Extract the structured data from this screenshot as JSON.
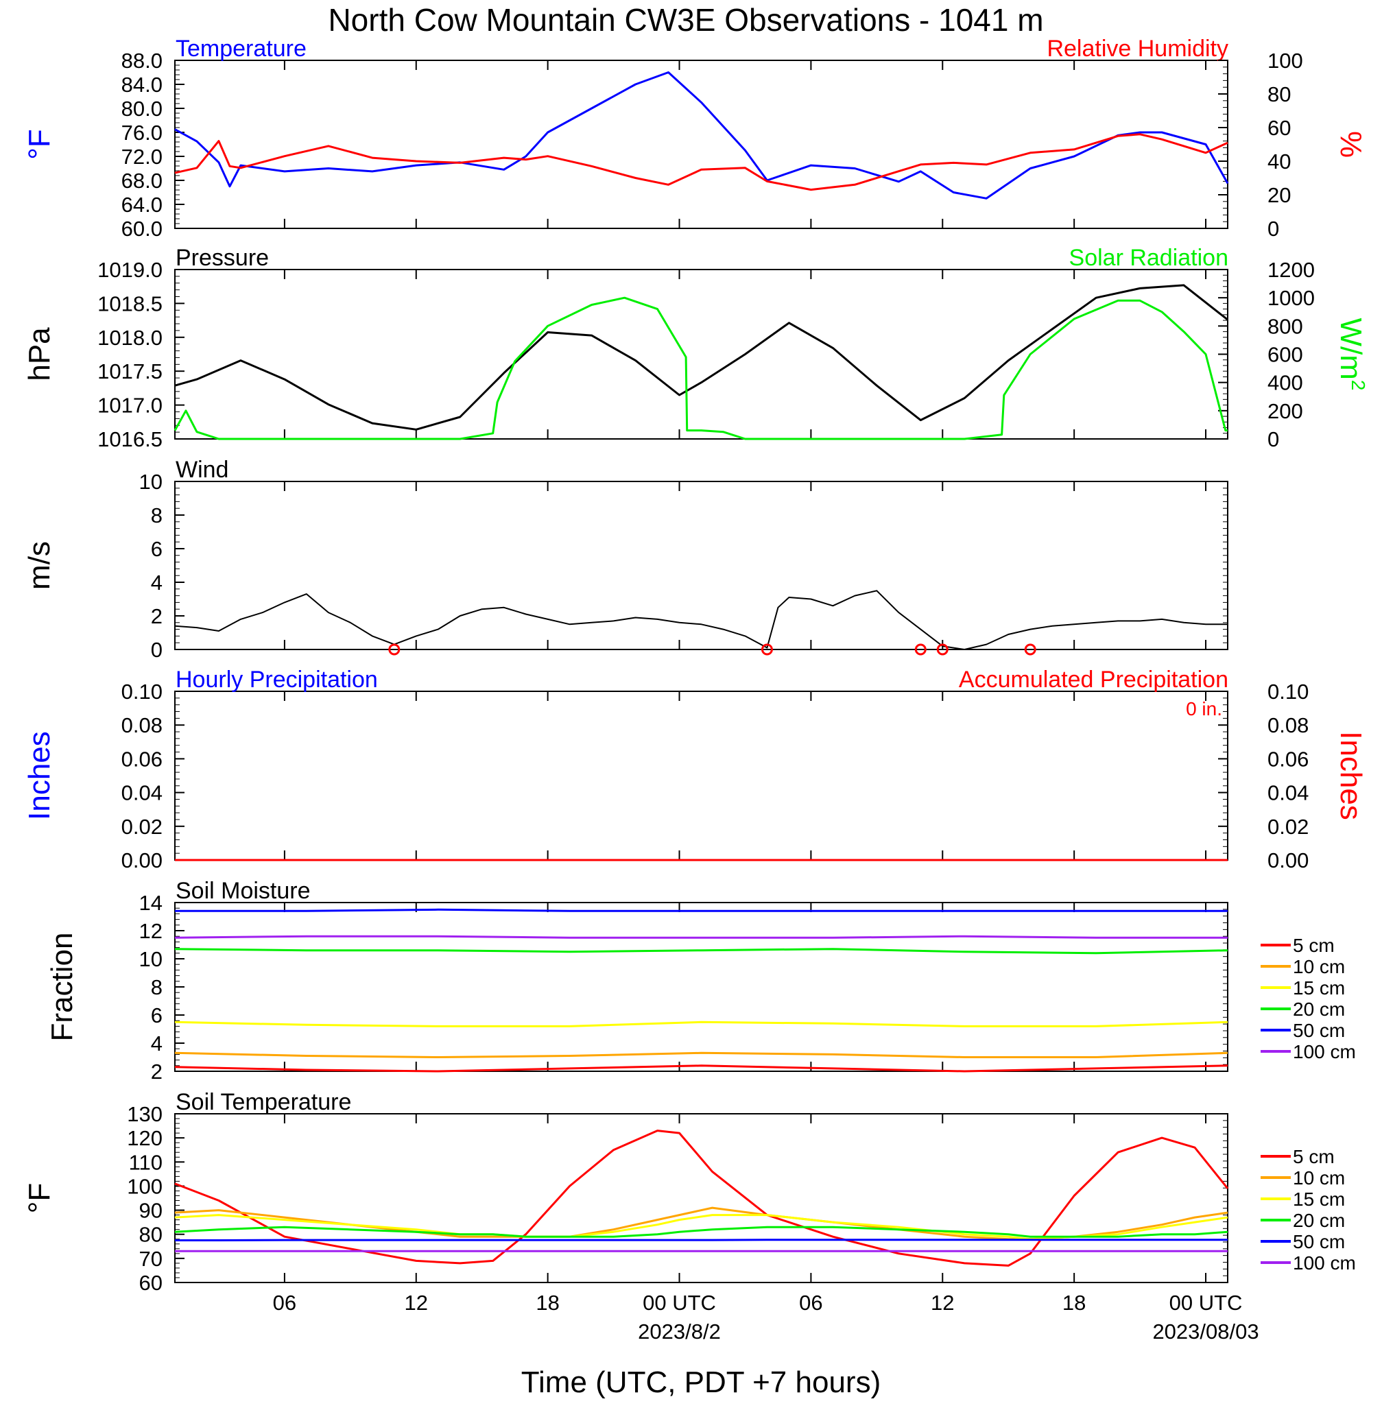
{
  "figure": {
    "title": "North Cow Mountain CW3E Observations - 1041 m",
    "x_axis": {
      "label": "Time (UTC, PDT +7 hours)",
      "ticks": [
        "06",
        "12",
        "18",
        "00 UTC",
        "06",
        "12",
        "18",
        "00 UTC"
      ],
      "date_labels": [
        "2023/8/2",
        "2023/08/03"
      ]
    },
    "colors": {
      "blue": "#0000ff",
      "red": "#ff0000",
      "green": "#00ee00",
      "black": "#000000",
      "orange": "#ffa500",
      "yellow": "#ffff00",
      "purple": "#a020f0"
    }
  },
  "chart_data": [
    {
      "type": "line",
      "title_left": "Temperature",
      "title_right": "Relative Humidity",
      "ylabel_left": "°F",
      "ylabel_right": "%",
      "yticks_left": [
        "88.0",
        "84.0",
        "80.0",
        "76.0",
        "72.0",
        "68.0",
        "64.0",
        "60.0"
      ],
      "yticks_right": [
        "100",
        "80",
        "60",
        "40",
        "20",
        "0"
      ],
      "ylim_left": [
        60,
        88
      ],
      "ylim_right": [
        0,
        100
      ],
      "x_hours": [
        1,
        2,
        3,
        3.5,
        4,
        6,
        8,
        10,
        12,
        14,
        16,
        17,
        18,
        20,
        22,
        23.5,
        25,
        27,
        28,
        30,
        32,
        34,
        35,
        36.5,
        38,
        40,
        42,
        44,
        45,
        46,
        48,
        49
      ],
      "series": [
        {
          "name": "Temperature",
          "color": "#0000ff",
          "axis": "left",
          "values": [
            76.5,
            74.5,
            71,
            67,
            70.5,
            69.5,
            70,
            69.5,
            70.5,
            71,
            69.8,
            72,
            76,
            80,
            84,
            86,
            81,
            73,
            68,
            70.5,
            70,
            67.8,
            69.5,
            66,
            65,
            70,
            72,
            75.5,
            76,
            76,
            74,
            67.5
          ]
        },
        {
          "name": "Relative Humidity",
          "color": "#ff0000",
          "axis": "right",
          "values": [
            33,
            36,
            52,
            37,
            36,
            43,
            49,
            42,
            40,
            39,
            42,
            41,
            43,
            37,
            30,
            26,
            35,
            36,
            28,
            23,
            26,
            34,
            38,
            39,
            38,
            45,
            47,
            55,
            56,
            53,
            45,
            51
          ]
        }
      ]
    },
    {
      "type": "line",
      "title_left": "Pressure",
      "title_right": "Solar Radiation",
      "ylabel_left": "hPa",
      "ylabel_right": "W/m",
      "ylabel_right_sup": "2",
      "yticks_left": [
        "1019.0",
        "1018.5",
        "1018.0",
        "1017.5",
        "1017.0",
        "1016.5"
      ],
      "yticks_right": [
        "1200",
        "1000",
        "800",
        "600",
        "400",
        "200",
        "0"
      ],
      "ylim_left": [
        1016.45,
        1019.15
      ],
      "ylim_right": [
        0,
        1200
      ],
      "series": [
        {
          "name": "Pressure",
          "color": "#000000",
          "axis": "left",
          "x_hours": [
            1,
            2,
            4,
            6,
            8,
            10,
            12,
            14,
            16,
            18,
            20,
            22,
            24,
            25,
            27,
            29,
            31,
            33,
            35,
            37,
            39,
            41,
            43,
            45,
            47,
            49
          ],
          "values": [
            1017.3,
            1017.4,
            1017.7,
            1017.4,
            1017.0,
            1016.7,
            1016.6,
            1016.8,
            1017.5,
            1018.15,
            1018.1,
            1017.7,
            1017.15,
            1017.35,
            1017.8,
            1018.3,
            1017.9,
            1017.3,
            1016.75,
            1017.1,
            1017.7,
            1018.2,
            1018.7,
            1018.85,
            1018.9,
            1018.35
          ]
        },
        {
          "name": "Solar Radiation",
          "color": "#00ee00",
          "axis": "right",
          "x_hours": [
            1,
            1.5,
            2,
            3,
            4,
            14,
            15.5,
            15.7,
            16.5,
            18,
            20,
            21.5,
            23,
            24.3,
            24.35,
            25,
            26,
            27,
            28,
            37,
            38.7,
            38.8,
            40,
            42,
            44,
            45,
            46,
            47,
            48,
            48.9,
            49
          ],
          "values": [
            60,
            200,
            50,
            0,
            0,
            0,
            40,
            260,
            550,
            800,
            950,
            1000,
            920,
            580,
            60,
            60,
            50,
            0,
            0,
            0,
            30,
            310,
            600,
            850,
            980,
            980,
            900,
            760,
            600,
            60,
            60
          ]
        }
      ]
    },
    {
      "type": "line",
      "title_left": "Wind",
      "ylabel_left": "m/s",
      "yticks_left": [
        "10",
        "8",
        "6",
        "4",
        "2",
        "0"
      ],
      "ylim_left": [
        0,
        10
      ],
      "x_hours": [
        1,
        2,
        3,
        4,
        5,
        6,
        7,
        8,
        9,
        10,
        11,
        12,
        13,
        14,
        15,
        16,
        17,
        18,
        19,
        20,
        21,
        22,
        23,
        24,
        25,
        26,
        27,
        28,
        28.5,
        29,
        30,
        31,
        32,
        33,
        34,
        35,
        36,
        37,
        38,
        39,
        40,
        41,
        42,
        43,
        44,
        45,
        46,
        47,
        48,
        49
      ],
      "series": [
        {
          "name": "Wind",
          "color": "#000000",
          "values": [
            1.4,
            1.3,
            1.1,
            1.8,
            2.2,
            2.8,
            3.3,
            2.2,
            1.6,
            0.8,
            0.3,
            0.8,
            1.2,
            2.0,
            2.4,
            2.5,
            2.1,
            1.8,
            1.5,
            1.6,
            1.7,
            1.9,
            1.8,
            1.6,
            1.5,
            1.2,
            0.8,
            0.1,
            2.5,
            3.1,
            3.0,
            2.6,
            3.2,
            3.5,
            2.2,
            1.2,
            0.2,
            0.0,
            0.3,
            0.9,
            1.2,
            1.4,
            1.5,
            1.6,
            1.7,
            1.7,
            1.8,
            1.6,
            1.5,
            1.5
          ]
        }
      ],
      "calm_markers_hours": [
        11,
        28,
        35,
        36,
        40
      ]
    },
    {
      "type": "line",
      "title_left": "Hourly Precipitation",
      "title_right": "Accumulated Precipitation",
      "annotation": "0 in.",
      "ylabel_left": "Inches",
      "ylabel_right": "Inches",
      "yticks_left": [
        "0.10",
        "0.08",
        "0.06",
        "0.04",
        "0.02",
        "0.00"
      ],
      "yticks_right": [
        "0.10",
        "0.08",
        "0.06",
        "0.04",
        "0.02",
        "0.00"
      ],
      "ylim_left": [
        0,
        0.1
      ],
      "ylim_right": [
        0,
        0.1
      ],
      "x_hours": [
        1,
        49
      ],
      "series": [
        {
          "name": "Hourly Precipitation",
          "color": "#0000ff",
          "values": [
            0,
            0
          ]
        },
        {
          "name": "Accumulated Precipitation",
          "color": "#ff0000",
          "values": [
            0,
            0
          ]
        }
      ]
    },
    {
      "type": "line",
      "title_left": "Soil Moisture",
      "ylabel_left": "Fraction",
      "yticks_left": [
        "14",
        "12",
        "10",
        "8",
        "6",
        "4",
        "2"
      ],
      "ylim_left": [
        2,
        14
      ],
      "x_hours": [
        1,
        7,
        13,
        19,
        25,
        31,
        37,
        43,
        49
      ],
      "series": [
        {
          "name": "5 cm",
          "color": "#ff0000",
          "values": [
            2.3,
            2.1,
            2.0,
            2.2,
            2.4,
            2.2,
            2.0,
            2.2,
            2.4
          ]
        },
        {
          "name": "10 cm",
          "color": "#ffa500",
          "values": [
            3.3,
            3.1,
            3.0,
            3.1,
            3.3,
            3.2,
            3.0,
            3.0,
            3.3
          ]
        },
        {
          "name": "15 cm",
          "color": "#ffff00",
          "values": [
            5.5,
            5.3,
            5.2,
            5.2,
            5.5,
            5.4,
            5.2,
            5.2,
            5.5
          ]
        },
        {
          "name": "20 cm",
          "color": "#00ee00",
          "values": [
            10.7,
            10.6,
            10.6,
            10.5,
            10.6,
            10.7,
            10.5,
            10.4,
            10.6
          ]
        },
        {
          "name": "50 cm",
          "color": "#0000ff",
          "values": [
            13.4,
            13.4,
            13.5,
            13.4,
            13.4,
            13.4,
            13.4,
            13.4,
            13.4
          ]
        },
        {
          "name": "100 cm",
          "color": "#a020f0",
          "values": [
            11.5,
            11.6,
            11.6,
            11.5,
            11.5,
            11.5,
            11.6,
            11.5,
            11.5
          ]
        }
      ]
    },
    {
      "type": "line",
      "title_left": "Soil Temperature",
      "ylabel_left": "°F",
      "yticks_left": [
        "130",
        "120",
        "110",
        "100",
        "90",
        "80",
        "70",
        "60"
      ],
      "ylim_left": [
        60,
        130
      ],
      "x_hours": [
        1,
        3,
        6,
        9,
        12,
        14,
        15.5,
        17,
        19,
        21,
        23,
        24,
        25.5,
        28,
        31,
        34,
        37,
        39,
        40,
        42,
        44,
        46,
        47.5,
        49
      ],
      "series": [
        {
          "name": "5 cm",
          "color": "#ff0000",
          "values": [
            101,
            94,
            79,
            74,
            69,
            68,
            69,
            80,
            100,
            115,
            123,
            122,
            106,
            88,
            79,
            72,
            68,
            67,
            72,
            96,
            114,
            120,
            116,
            99
          ]
        },
        {
          "name": "10 cm",
          "color": "#ffa500",
          "values": [
            89,
            90,
            87,
            84,
            81,
            79,
            79,
            79,
            79,
            82,
            86,
            88,
            91,
            88,
            85,
            82,
            79,
            78,
            78,
            79,
            81,
            84,
            87,
            89
          ]
        },
        {
          "name": "15 cm",
          "color": "#ffff00",
          "values": [
            87,
            88,
            86,
            84,
            82,
            80,
            80,
            79,
            79,
            81,
            84,
            86,
            88,
            88,
            85,
            83,
            80,
            79,
            78,
            79,
            80,
            83,
            85,
            87
          ]
        },
        {
          "name": "20 cm",
          "color": "#00ee00",
          "values": [
            81,
            82,
            83,
            82,
            81,
            80,
            80,
            79,
            79,
            79,
            80,
            81,
            82,
            83,
            83,
            82,
            81,
            80,
            79,
            79,
            79,
            80,
            80,
            81
          ]
        },
        {
          "name": "50 cm",
          "color": "#0000ff",
          "values": [
            77.5,
            77.5,
            77.6,
            77.6,
            77.6,
            77.6,
            77.6,
            77.6,
            77.6,
            77.6,
            77.6,
            77.6,
            77.6,
            77.7,
            77.7,
            77.7,
            77.7,
            77.7,
            77.7,
            77.7,
            77.7,
            77.7,
            77.7,
            77.7
          ]
        },
        {
          "name": "100 cm",
          "color": "#a020f0",
          "values": [
            73,
            73,
            73,
            73,
            73,
            73,
            73,
            73,
            73,
            73,
            73,
            73,
            73,
            73,
            73,
            73,
            73,
            73,
            73,
            73,
            73,
            73,
            73,
            73
          ]
        }
      ]
    }
  ]
}
